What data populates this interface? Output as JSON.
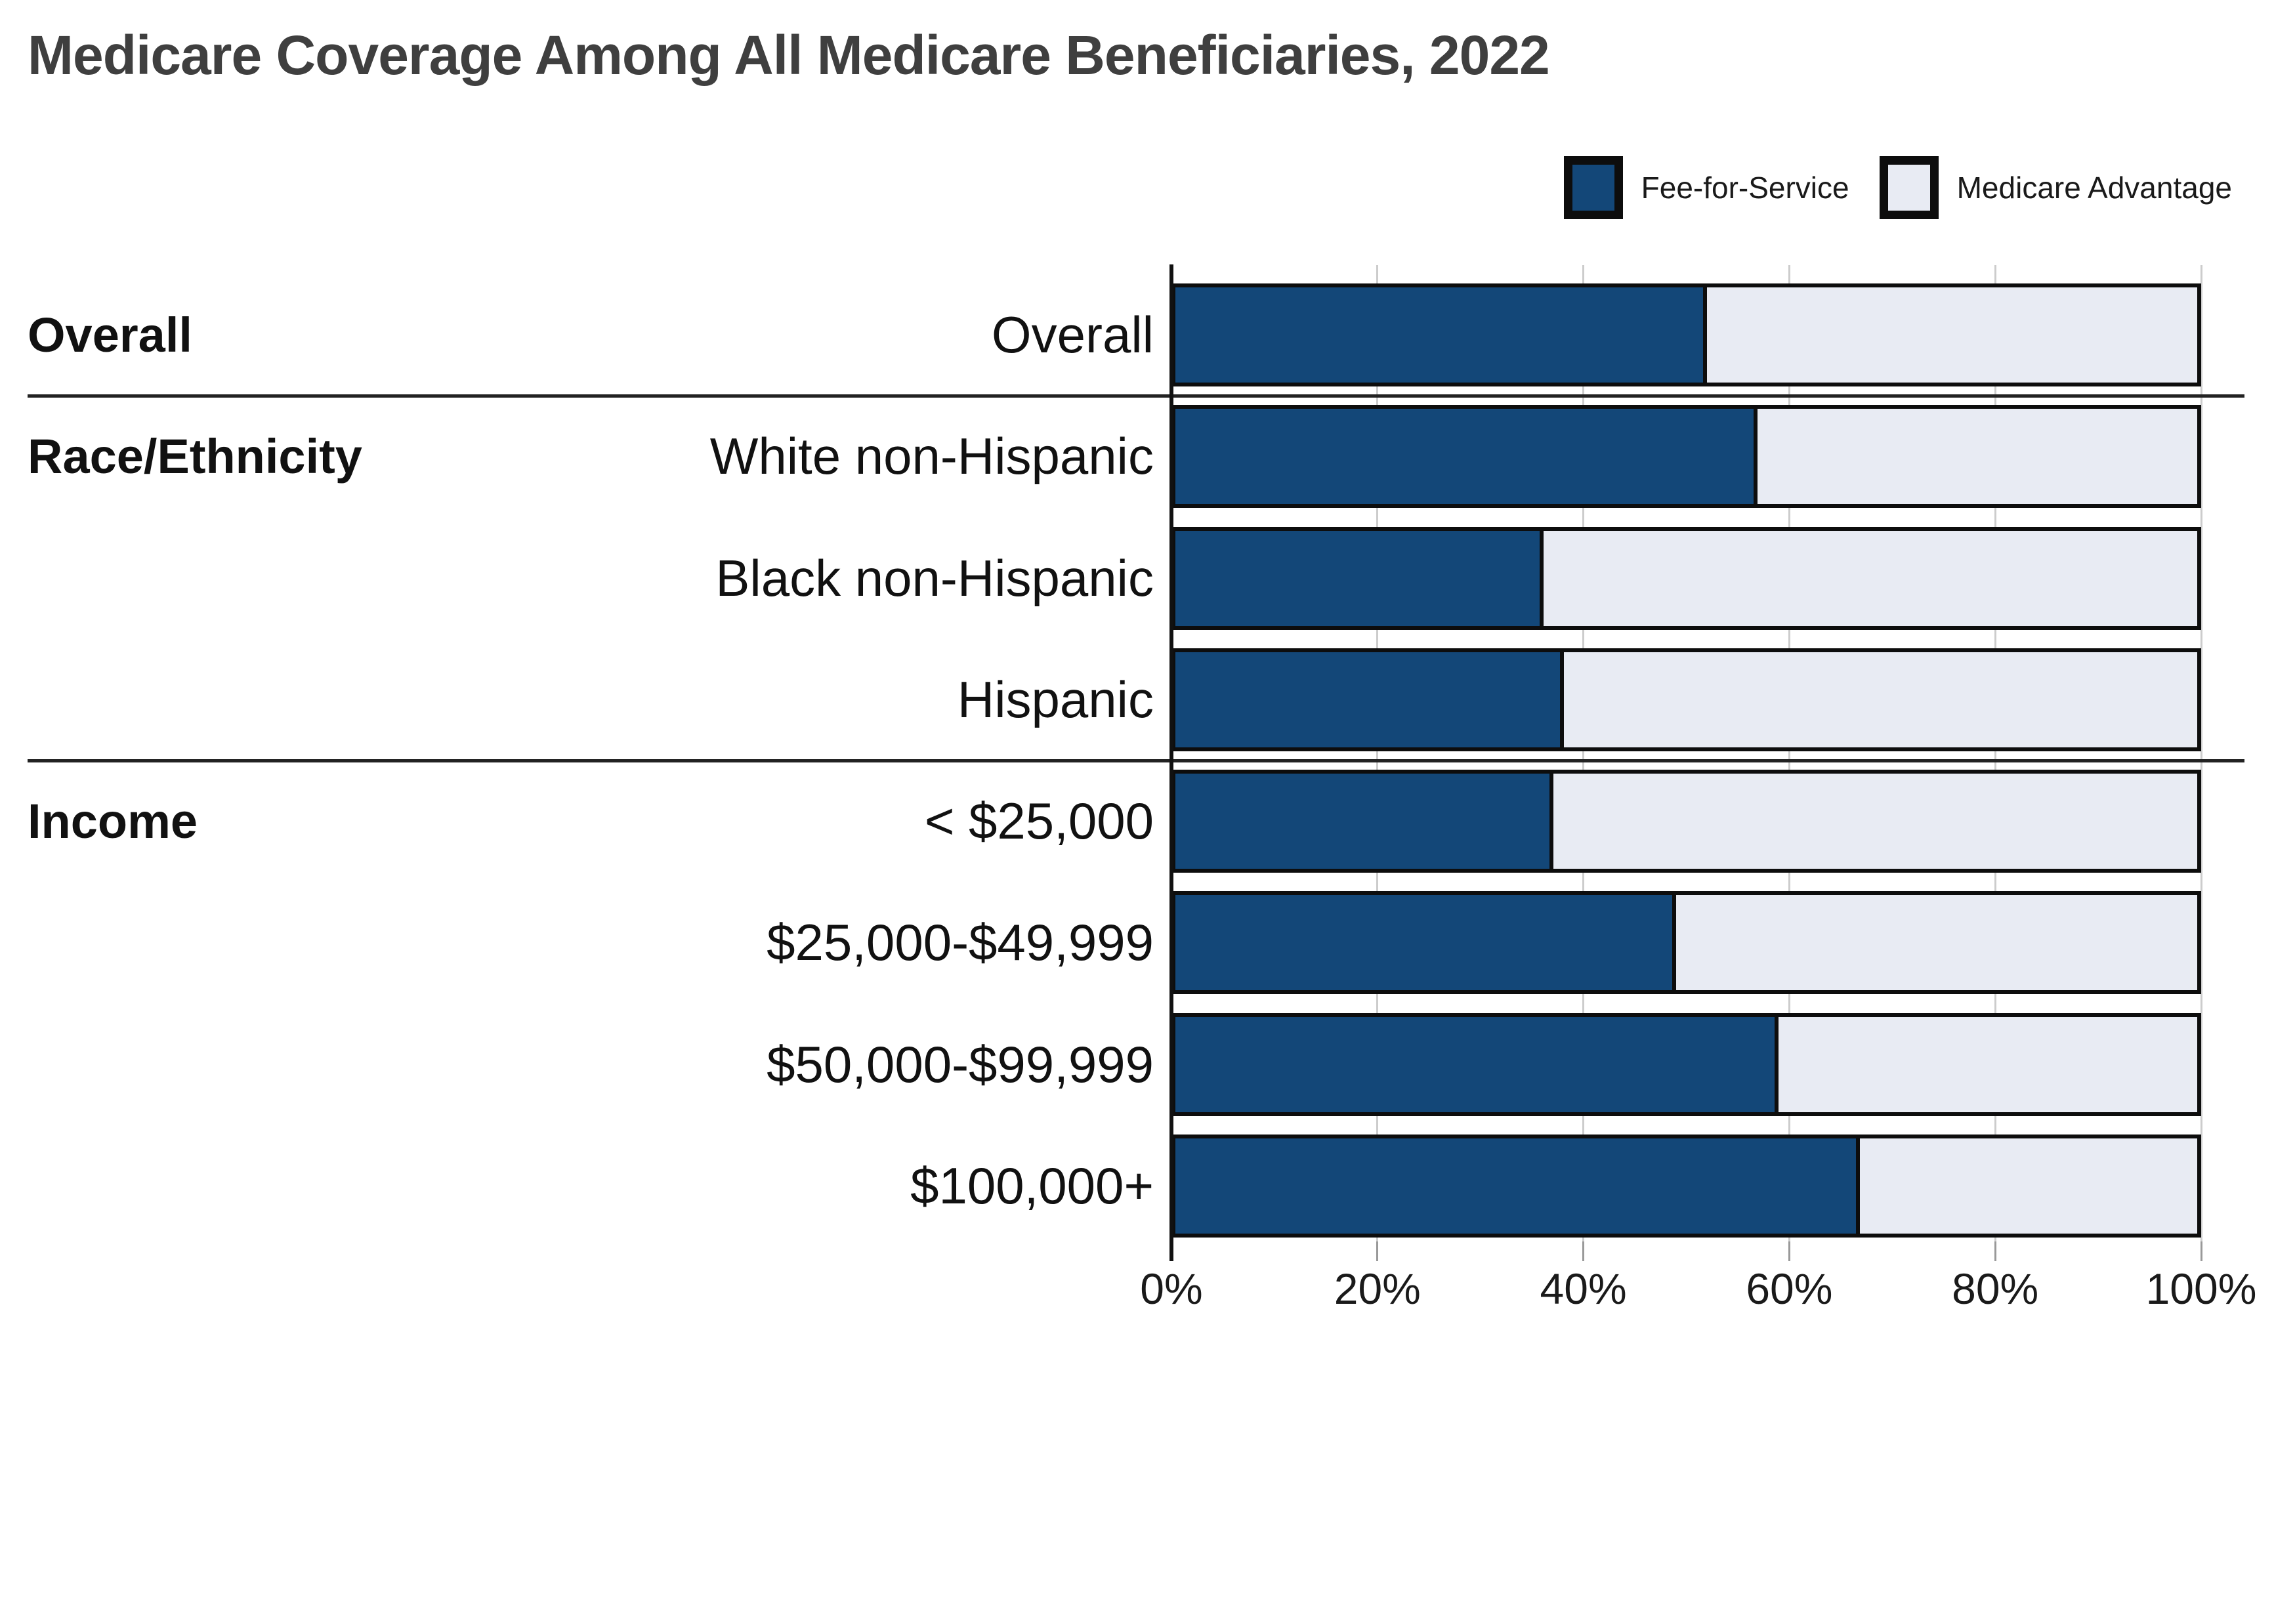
{
  "title": "Medicare Coverage Among All Medicare Beneficiaries, 2022",
  "legend": [
    {
      "label": "Fee-for-Service",
      "swatch": "ffs-swatch"
    },
    {
      "label": "Medicare Advantage",
      "swatch": "ma-swatch"
    }
  ],
  "colors": {
    "fee_for_service": "#134778",
    "medicare_advantage": "#e8ebf3",
    "bar_border": "#0d0d0d",
    "gridline": "#cccccc",
    "title_text": "#3f3f3f",
    "label_text": "#111111"
  },
  "chart_data": {
    "type": "bar",
    "orientation": "horizontal-stacked",
    "title": "Medicare Coverage Among All Medicare Beneficiaries, 2022",
    "xlabel": "",
    "ylabel": "",
    "xlim": [
      0,
      100
    ],
    "x_tick_labels": [
      "0%",
      "20%",
      "40%",
      "60%",
      "80%",
      "100%"
    ],
    "x_tick_values": [
      0,
      20,
      40,
      60,
      80,
      100
    ],
    "grid": "vertical",
    "legend_position": "top-right",
    "series_names": [
      "Fee-for-Service",
      "Medicare Advantage"
    ],
    "rows": [
      {
        "group": "Overall",
        "label": "Overall",
        "fee_for_service": 52,
        "medicare_advantage": 48
      },
      {
        "group": "Race/Ethnicity",
        "label": "White non-Hispanic",
        "fee_for_service": 57,
        "medicare_advantage": 43
      },
      {
        "group": "",
        "label": "Black non-Hispanic",
        "fee_for_service": 36,
        "medicare_advantage": 64
      },
      {
        "group": "",
        "label": "Hispanic",
        "fee_for_service": 38,
        "medicare_advantage": 62
      },
      {
        "group": "Income",
        "label": "< $25,000",
        "fee_for_service": 37,
        "medicare_advantage": 63
      },
      {
        "group": "",
        "label": "$25,000-$49,999",
        "fee_for_service": 49,
        "medicare_advantage": 51
      },
      {
        "group": "",
        "label": "$50,000-$99,999",
        "fee_for_service": 59,
        "medicare_advantage": 41
      },
      {
        "group": "",
        "label": "$100,000+",
        "fee_for_service": 67,
        "medicare_advantage": 33
      }
    ]
  }
}
